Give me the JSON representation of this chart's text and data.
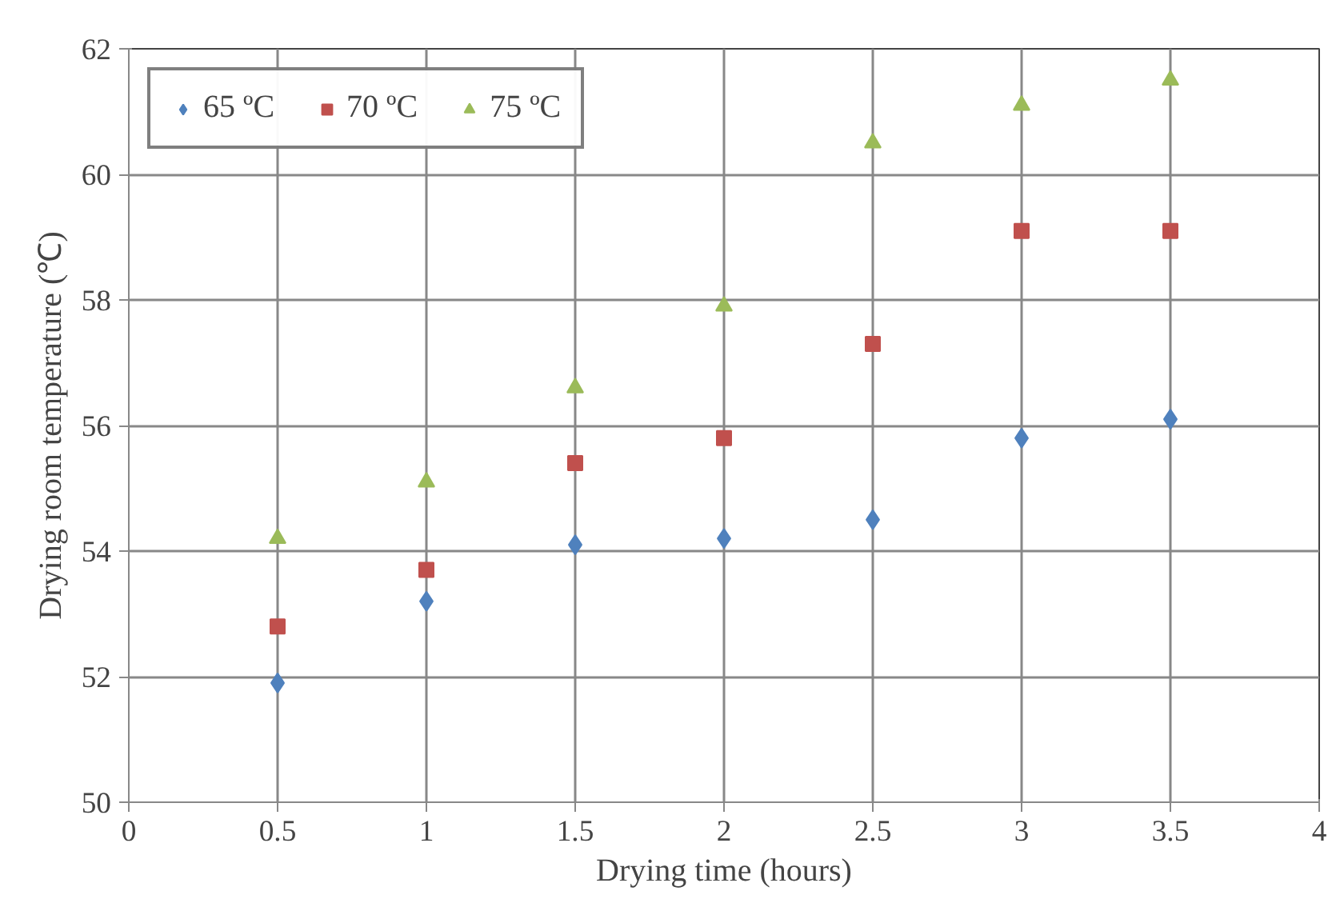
{
  "chart_data": {
    "type": "scatter",
    "xlabel": "Drying time (hours)",
    "ylabel": "Drying room temperature (℃)",
    "x": [
      0.5,
      1,
      1.5,
      2,
      2.5,
      3,
      3.5
    ],
    "series": [
      {
        "name": "65 ºC",
        "color": "#4f81bd",
        "marker": "diamond",
        "values": [
          51.9,
          53.2,
          54.1,
          54.2,
          54.5,
          55.8,
          56.1
        ]
      },
      {
        "name": "70 ºC",
        "color": "#c0504d",
        "marker": "square",
        "values": [
          52.8,
          53.7,
          55.4,
          55.8,
          57.3,
          59.1,
          59.1
        ]
      },
      {
        "name": "75 ºC",
        "color": "#9bbb59",
        "marker": "triangle",
        "values": [
          54.2,
          55.1,
          56.6,
          57.9,
          60.5,
          61.1,
          61.5
        ]
      }
    ],
    "xlim": [
      0,
      4
    ],
    "xticks": [
      0,
      0.5,
      1,
      1.5,
      2,
      2.5,
      3,
      3.5,
      4
    ],
    "ylim": [
      50,
      62
    ],
    "yticks": [
      50,
      52,
      54,
      56,
      58,
      60,
      62
    ],
    "grid": true,
    "legend": "top left"
  }
}
